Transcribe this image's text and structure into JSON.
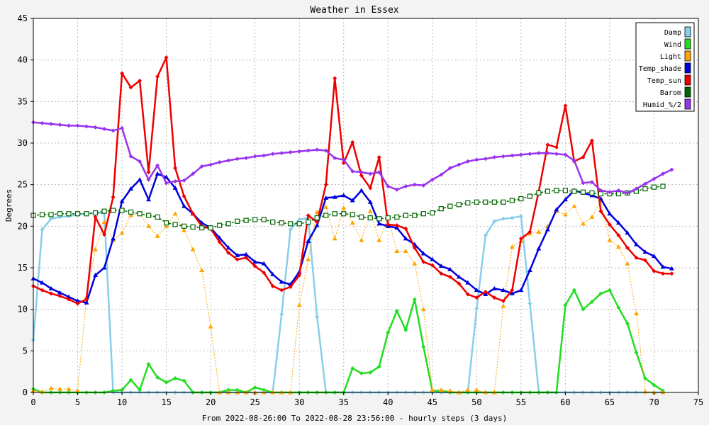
{
  "chart_data": {
    "type": "line",
    "title": "Weather in Essex",
    "xlabel": "From 2022-08-26:00 To 2022-08-28 23:56:00 - hourly steps (3 days)",
    "ylabel": "Degrees",
    "xlim": [
      0,
      75
    ],
    "ylim": [
      0,
      45
    ],
    "x_ticks": [
      0,
      5,
      10,
      15,
      20,
      25,
      30,
      35,
      40,
      45,
      50,
      55,
      60,
      65,
      70,
      75
    ],
    "y_ticks": [
      0,
      5,
      10,
      15,
      20,
      25,
      30,
      35,
      40,
      45
    ],
    "grid": true,
    "legend_position": "top-right",
    "series": [
      {
        "name": "Damp",
        "color": "#87ceeb",
        "marker": "diamond",
        "dash": "",
        "width": 2.5,
        "values": [
          6.3,
          19.6,
          20.9,
          21.1,
          21.2,
          21.4,
          21.5,
          21.6,
          21.6,
          0,
          0,
          0,
          0,
          0,
          0,
          0,
          0,
          0,
          0,
          0,
          0,
          0,
          0,
          0,
          0,
          0,
          0,
          0,
          9.4,
          19.6,
          20.8,
          21.0,
          9.1,
          0,
          0,
          0,
          0,
          0,
          0,
          0,
          0,
          0,
          0,
          0,
          0,
          0,
          0,
          0,
          0,
          0,
          10.1,
          18.9,
          20.6,
          20.9,
          21.0,
          21.2,
          10.7,
          0,
          0,
          0,
          0,
          0,
          0,
          0,
          0,
          0,
          0,
          0,
          0,
          0,
          0,
          0
        ]
      },
      {
        "name": "Wind",
        "color": "#22dd22",
        "marker": "diamond",
        "dash": "",
        "width": 2.5,
        "values": [
          0.4,
          0,
          0,
          0,
          0,
          0,
          0,
          0,
          0,
          0.2,
          0.3,
          1.5,
          0.3,
          3.4,
          1.8,
          1.2,
          1.7,
          1.4,
          0,
          0,
          0,
          0,
          0.3,
          0.3,
          0,
          0.6,
          0.3,
          0,
          0,
          0,
          0,
          0,
          0,
          0,
          0,
          0,
          2.9,
          2.3,
          2.4,
          3.1,
          7.2,
          9.8,
          7.5,
          11.2,
          5.5,
          0.2,
          0.2,
          0,
          0,
          0,
          0,
          0,
          0,
          0,
          0,
          0,
          0,
          0,
          0,
          0,
          10.5,
          12.3,
          10.0,
          10.9,
          11.9,
          12.3,
          10.2,
          8.3,
          4.8,
          1.7,
          0.9,
          0.2
        ]
      },
      {
        "name": "Light",
        "color": "#ffa500",
        "marker": "triangle",
        "dash": "2,2",
        "width": 1,
        "values": [
          0.2,
          0.1,
          0.5,
          0.4,
          0.4,
          0.2,
          11.5,
          17.2,
          20.5,
          18.3,
          19.2,
          21.3,
          21.5,
          20.0,
          18.8,
          20.0,
          21.5,
          19.5,
          17.2,
          14.7,
          7.9,
          0,
          0,
          0,
          0,
          0,
          0,
          0,
          0,
          0,
          10.5,
          16.0,
          21.7,
          22.3,
          18.5,
          22.2,
          20.4,
          18.3,
          21.8,
          18.3,
          21.0,
          17.0,
          17.0,
          15.5,
          10.0,
          0.3,
          0.3,
          0.2,
          0,
          0.3,
          0.3,
          0,
          0,
          10.4,
          17.5,
          18.2,
          19.1,
          19.3,
          20.0,
          21.8,
          21.4,
          22.4,
          20.3,
          21.1,
          23.0,
          18.3,
          17.5,
          15.5,
          9.5,
          0.1,
          0,
          0
        ]
      },
      {
        "name": "Temp_shade",
        "color": "#0000dd",
        "marker": "triangle",
        "dash": "",
        "width": 2.5,
        "values": [
          13.7,
          13.2,
          12.5,
          12.0,
          11.5,
          11.0,
          10.8,
          14.1,
          15.0,
          18.5,
          23.0,
          24.5,
          25.6,
          23.2,
          26.3,
          25.9,
          24.6,
          22.4,
          21.5,
          20.4,
          19.8,
          18.6,
          17.4,
          16.5,
          16.6,
          15.7,
          15.5,
          14.2,
          13.3,
          13.0,
          14.5,
          18.2,
          20.1,
          23.4,
          23.5,
          23.7,
          23.1,
          24.3,
          22.9,
          20.3,
          20.0,
          19.8,
          18.5,
          17.8,
          16.7,
          16.0,
          15.2,
          14.8,
          13.9,
          13.2,
          12.3,
          11.8,
          12.5,
          12.3,
          11.9,
          12.3,
          14.7,
          17.3,
          19.6,
          22.0,
          23.2,
          24.3,
          24.0,
          23.7,
          23.3,
          21.5,
          20.4,
          19.2,
          17.8,
          16.9,
          16.4,
          15.1,
          14.9
        ]
      },
      {
        "name": "Temp_sun",
        "color": "#ee0000",
        "marker": "diamond",
        "dash": "",
        "width": 2.5,
        "values": [
          12.8,
          12.3,
          11.9,
          11.6,
          11.2,
          10.7,
          11.2,
          21.1,
          19.0,
          23.5,
          38.4,
          36.7,
          37.5,
          26.5,
          38.0,
          40.3,
          27.0,
          23.6,
          21.5,
          20.0,
          19.7,
          18.1,
          16.8,
          16.0,
          16.2,
          15.2,
          14.4,
          12.8,
          12.3,
          12.7,
          14.1,
          21.3,
          20.5,
          25.0,
          37.8,
          27.6,
          30.1,
          26.1,
          24.6,
          28.3,
          20.2,
          20.1,
          19.7,
          17.4,
          15.7,
          15.3,
          14.3,
          13.9,
          13.1,
          11.8,
          11.4,
          12.1,
          11.4,
          11.0,
          12.3,
          18.5,
          19.3,
          24.2,
          29.8,
          29.5,
          34.5,
          27.8,
          28.3,
          30.3,
          21.8,
          20.2,
          18.9,
          17.4,
          16.2,
          15.9,
          14.6,
          14.3,
          14.3
        ]
      },
      {
        "name": "Barom",
        "color": "#006600",
        "marker": "square",
        "dash": "3,2",
        "width": 1.5,
        "values": [
          21.3,
          21.4,
          21.4,
          21.5,
          21.5,
          21.5,
          21.5,
          21.6,
          21.8,
          21.9,
          21.9,
          21.7,
          21.5,
          21.3,
          21.1,
          20.4,
          20.2,
          20.0,
          19.9,
          19.8,
          19.8,
          20.1,
          20.3,
          20.6,
          20.7,
          20.8,
          20.8,
          20.5,
          20.4,
          20.3,
          20.3,
          20.5,
          21.0,
          21.3,
          21.5,
          21.5,
          21.4,
          21.1,
          21.0,
          20.9,
          21.0,
          21.1,
          21.3,
          21.3,
          21.5,
          21.6,
          22.1,
          22.4,
          22.6,
          22.8,
          22.9,
          22.9,
          22.9,
          22.9,
          23.1,
          23.3,
          23.6,
          24.0,
          24.2,
          24.3,
          24.3,
          24.2,
          24.1,
          24.0,
          23.9,
          23.9,
          23.9,
          24.0,
          24.2,
          24.5,
          24.7,
          24.8
        ]
      },
      {
        "name": "Humid_%/2",
        "color": "#9933ee",
        "marker": "diamond",
        "dash": "",
        "width": 2.5,
        "values": [
          32.5,
          32.4,
          32.3,
          32.2,
          32.1,
          32.1,
          32.0,
          31.9,
          31.7,
          31.5,
          31.8,
          28.4,
          27.8,
          25.6,
          27.3,
          25.2,
          25.4,
          25.5,
          26.3,
          27.2,
          27.4,
          27.7,
          27.9,
          28.1,
          28.2,
          28.4,
          28.5,
          28.7,
          28.8,
          28.9,
          29.0,
          29.1,
          29.2,
          29.1,
          28.2,
          28.0,
          26.6,
          26.5,
          26.3,
          26.5,
          24.8,
          24.4,
          24.8,
          25.0,
          24.9,
          25.6,
          26.2,
          27.0,
          27.4,
          27.8,
          28.0,
          28.1,
          28.3,
          28.4,
          28.5,
          28.6,
          28.7,
          28.8,
          28.8,
          28.7,
          28.6,
          27.9,
          25.2,
          25.3,
          24.3,
          24.1,
          24.3,
          24.0,
          24.5,
          25.1,
          25.7,
          26.3,
          26.8
        ]
      }
    ]
  }
}
